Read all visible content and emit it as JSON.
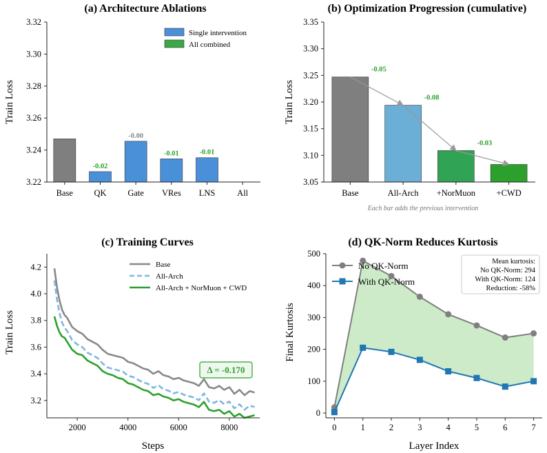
{
  "chart_data": [
    {
      "type": "bar",
      "title": "(a) Architecture Ablations",
      "xlabel": "",
      "ylabel": "Train Loss",
      "ylim": [
        3.22,
        3.32
      ],
      "yticks": [
        "3.22",
        "3.24",
        "3.26",
        "3.28",
        "3.30",
        "3.32"
      ],
      "categories": [
        "Base",
        "QK",
        "Gate",
        "VRes",
        "LNS",
        "All"
      ],
      "values": [
        3.247,
        3.2265,
        3.2455,
        3.2345,
        3.2352,
        null
      ],
      "bar_kinds": [
        "base",
        "single",
        "single",
        "single",
        "single",
        "combined"
      ],
      "data_labels": [
        "",
        "-0.02",
        "-0.00",
        "-0.01",
        "-0.01",
        ""
      ],
      "legend": [
        {
          "name": "Single intervention",
          "color": "#4a90d9"
        },
        {
          "name": "All combined",
          "color": "#3aa845"
        }
      ],
      "colors": {
        "base": "#7f7f7f",
        "single": "#4a90d9",
        "combined": "#3aa845",
        "label_green": "#2ca02c",
        "label_gray": "#888888"
      }
    },
    {
      "type": "bar",
      "title": "(b) Optimization Progression (cumulative)",
      "xlabel": "",
      "ylabel": "Train Loss",
      "ylim": [
        3.05,
        3.35
      ],
      "yticks": [
        "3.05",
        "3.10",
        "3.15",
        "3.20",
        "3.25",
        "3.30",
        "3.35"
      ],
      "categories": [
        "Base",
        "All-Arch",
        "+NorMuon",
        "+CWD"
      ],
      "values": [
        3.247,
        3.194,
        3.109,
        3.083
      ],
      "deltas": [
        "-0.05",
        "-0.08",
        "-0.03"
      ],
      "note": "Each bar adds the previous intervention",
      "colors": [
        "#7f7f7f",
        "#6baed6",
        "#31a354",
        "#2ca02c"
      ]
    },
    {
      "type": "line",
      "title": "(c) Training Curves",
      "xlabel": "Steps",
      "ylabel": "Train Loss",
      "xlim": [
        800,
        9200
      ],
      "ylim": [
        3.07,
        4.3
      ],
      "xticks": [
        2000,
        4000,
        6000,
        8000
      ],
      "yticks": [
        "3.2",
        "3.4",
        "3.6",
        "3.8",
        "4.0",
        "4.2"
      ],
      "annotation": "Δ = -0.170",
      "series": [
        {
          "name": "Base",
          "color": "#888888",
          "dash": "solid",
          "offset": 0.0
        },
        {
          "name": "All-Arch",
          "color": "#7fb6dd",
          "dash": "dashed",
          "offset": -0.09
        },
        {
          "name": "All-Arch + NorMuon + CWD",
          "color": "#2ca02c",
          "dash": "solid",
          "offset": -0.17
        }
      ],
      "x": [
        1100,
        1200,
        1300,
        1400,
        1500,
        1600,
        1800,
        2000,
        2200,
        2400,
        2600,
        2800,
        3000,
        3200,
        3400,
        3600,
        3800,
        4000,
        4200,
        4400,
        4600,
        4800,
        5000,
        5200,
        5400,
        5600,
        5800,
        6000,
        6200,
        6400,
        6600,
        6800,
        7000,
        7200,
        7400,
        7600,
        7800,
        8000,
        8200,
        8400,
        8600,
        8800,
        9000
      ],
      "base_values": [
        4.19,
        4.05,
        3.95,
        3.88,
        3.84,
        3.82,
        3.75,
        3.72,
        3.7,
        3.66,
        3.64,
        3.62,
        3.58,
        3.55,
        3.54,
        3.53,
        3.52,
        3.49,
        3.48,
        3.46,
        3.44,
        3.43,
        3.4,
        3.42,
        3.39,
        3.38,
        3.36,
        3.37,
        3.35,
        3.34,
        3.33,
        3.31,
        3.36,
        3.3,
        3.29,
        3.31,
        3.28,
        3.3,
        3.25,
        3.28,
        3.24,
        3.27,
        3.26
      ],
      "green_values": [
        3.83,
        3.76,
        3.71,
        3.68,
        3.67,
        3.64,
        3.58,
        3.55,
        3.54,
        3.5,
        3.48,
        3.46,
        3.42,
        3.4,
        3.39,
        3.37,
        3.36,
        3.33,
        3.32,
        3.3,
        3.28,
        3.27,
        3.24,
        3.25,
        3.23,
        3.22,
        3.2,
        3.21,
        3.19,
        3.18,
        3.17,
        3.15,
        3.19,
        3.13,
        3.12,
        3.13,
        3.1,
        3.12,
        3.08,
        3.1,
        3.07,
        3.08,
        3.09
      ]
    },
    {
      "type": "line",
      "title": "(d) QK-Norm Reduces Kurtosis",
      "xlabel": "Layer Index",
      "ylabel": "Final Kurtosis",
      "xlim": [
        -0.3,
        7.3
      ],
      "ylim": [
        -15,
        500
      ],
      "xticks": [
        0,
        1,
        2,
        3,
        4,
        5,
        6,
        7
      ],
      "yticks": [
        0,
        100,
        200,
        300,
        400,
        500
      ],
      "series": [
        {
          "name": "No QK-Norm",
          "color": "#7f7f7f",
          "marker": "circle",
          "values": [
            18,
            478,
            430,
            365,
            310,
            275,
            237,
            250
          ]
        },
        {
          "name": "With QK-Norm",
          "color": "#1f77b4",
          "marker": "square",
          "values": [
            3,
            205,
            192,
            167,
            131,
            110,
            83,
            100
          ]
        }
      ],
      "fill_color": "#cdebc8",
      "stats_box": [
        "Mean kurtosis:",
        "No QK-Norm: 294",
        "With QK-Norm: 124",
        "Reduction: -58%"
      ]
    }
  ]
}
